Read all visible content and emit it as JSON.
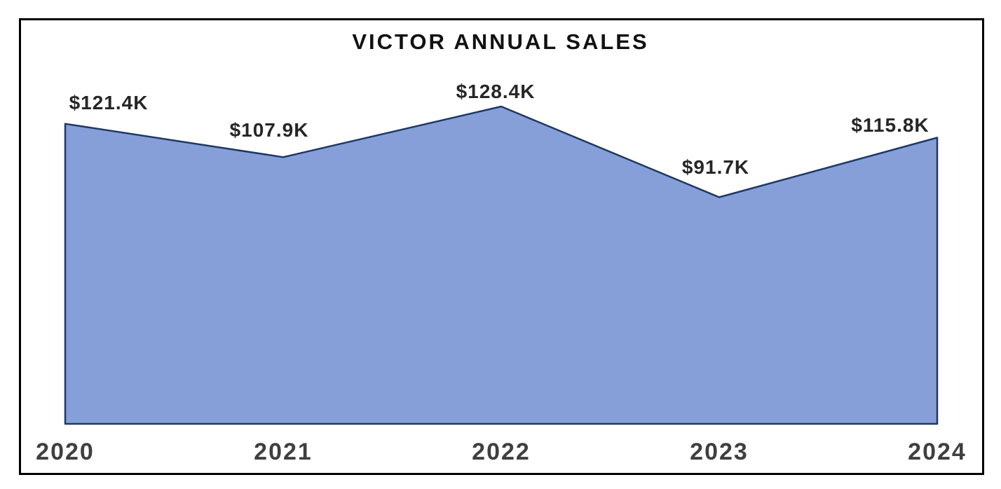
{
  "chart_data": {
    "type": "area",
    "title": "VICTOR ANNUAL SALES",
    "categories": [
      "2020",
      "2021",
      "2022",
      "2023",
      "2024"
    ],
    "values": [
      121.4,
      107.9,
      128.4,
      91.7,
      115.8
    ],
    "value_labels": [
      "$121.4K",
      "$107.9K",
      "$128.4K",
      "$91.7K",
      "$115.8K"
    ],
    "xlabel": "",
    "ylabel": "",
    "ylim": [
      0,
      135
    ],
    "grid": false,
    "legend": false,
    "fill_color": "#869FD9",
    "line_color": "#1F3864",
    "frame_color": "#000000",
    "title_color": "#111111",
    "data_label_color": "#262626",
    "axis_label_color": "#3f3f3f"
  }
}
